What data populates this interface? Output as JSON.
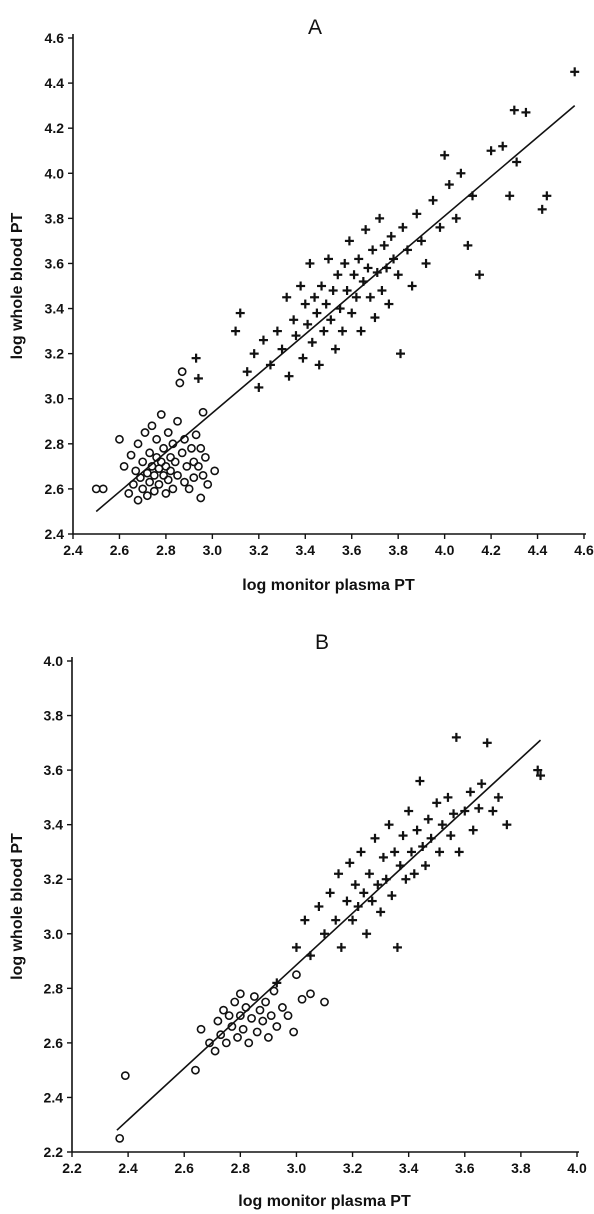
{
  "chart_data": [
    {
      "type": "scatter",
      "title": "A",
      "xlabel": "log monitor plasma PT",
      "ylabel": "log whole blood PT",
      "xlim": [
        2.4,
        4.6
      ],
      "ylim": [
        2.4,
        4.6
      ],
      "x_ticks": [
        "2.4",
        "2.6",
        "2.8",
        "3.0",
        "3.2",
        "3.4",
        "3.6",
        "3.8",
        "4.0",
        "4.2",
        "4.4",
        "4.6"
      ],
      "y_ticks": [
        "2.4",
        "2.6",
        "2.8",
        "3.0",
        "3.2",
        "3.4",
        "3.6",
        "3.8",
        "4.0",
        "4.2",
        "4.4",
        "4.6"
      ],
      "grid": false,
      "fit_line": {
        "x": [
          2.5,
          4.56
        ],
        "y": [
          2.5,
          4.3
        ]
      },
      "series": [
        {
          "marker": "circle",
          "points": [
            [
              2.5,
              2.6
            ],
            [
              2.53,
              2.6
            ],
            [
              2.6,
              2.82
            ],
            [
              2.62,
              2.7
            ],
            [
              2.64,
              2.58
            ],
            [
              2.65,
              2.75
            ],
            [
              2.66,
              2.62
            ],
            [
              2.67,
              2.68
            ],
            [
              2.68,
              2.55
            ],
            [
              2.68,
              2.8
            ],
            [
              2.69,
              2.65
            ],
            [
              2.7,
              2.72
            ],
            [
              2.7,
              2.6
            ],
            [
              2.71,
              2.85
            ],
            [
              2.72,
              2.67
            ],
            [
              2.72,
              2.57
            ],
            [
              2.73,
              2.76
            ],
            [
              2.73,
              2.63
            ],
            [
              2.74,
              2.7
            ],
            [
              2.74,
              2.88
            ],
            [
              2.75,
              2.66
            ],
            [
              2.75,
              2.59
            ],
            [
              2.76,
              2.74
            ],
            [
              2.76,
              2.82
            ],
            [
              2.77,
              2.69
            ],
            [
              2.77,
              2.62
            ],
            [
              2.78,
              2.93
            ],
            [
              2.78,
              2.72
            ],
            [
              2.79,
              2.66
            ],
            [
              2.79,
              2.78
            ],
            [
              2.8,
              2.58
            ],
            [
              2.8,
              2.7
            ],
            [
              2.81,
              2.85
            ],
            [
              2.81,
              2.64
            ],
            [
              2.82,
              2.74
            ],
            [
              2.82,
              2.68
            ],
            [
              2.83,
              2.8
            ],
            [
              2.83,
              2.6
            ],
            [
              2.84,
              2.72
            ],
            [
              2.85,
              2.66
            ],
            [
              2.85,
              2.9
            ],
            [
              2.86,
              3.07
            ],
            [
              2.87,
              3.12
            ],
            [
              2.87,
              2.76
            ],
            [
              2.88,
              2.63
            ],
            [
              2.88,
              2.82
            ],
            [
              2.89,
              2.7
            ],
            [
              2.9,
              2.6
            ],
            [
              2.91,
              2.78
            ],
            [
              2.92,
              2.72
            ],
            [
              2.92,
              2.65
            ],
            [
              2.93,
              2.84
            ],
            [
              2.94,
              2.7
            ],
            [
              2.95,
              2.56
            ],
            [
              2.95,
              2.78
            ],
            [
              2.96,
              2.94
            ],
            [
              2.96,
              2.66
            ],
            [
              2.97,
              2.74
            ],
            [
              2.98,
              2.62
            ],
            [
              3.01,
              2.68
            ]
          ]
        },
        {
          "marker": "plus",
          "points": [
            [
              2.93,
              3.18
            ],
            [
              2.94,
              3.09
            ],
            [
              3.1,
              3.3
            ],
            [
              3.12,
              3.38
            ],
            [
              3.15,
              3.12
            ],
            [
              3.18,
              3.2
            ],
            [
              3.2,
              3.05
            ],
            [
              3.22,
              3.26
            ],
            [
              3.25,
              3.15
            ],
            [
              3.28,
              3.3
            ],
            [
              3.3,
              3.22
            ],
            [
              3.32,
              3.45
            ],
            [
              3.33,
              3.1
            ],
            [
              3.35,
              3.35
            ],
            [
              3.36,
              3.28
            ],
            [
              3.38,
              3.5
            ],
            [
              3.39,
              3.18
            ],
            [
              3.4,
              3.42
            ],
            [
              3.41,
              3.33
            ],
            [
              3.42,
              3.6
            ],
            [
              3.43,
              3.25
            ],
            [
              3.44,
              3.45
            ],
            [
              3.45,
              3.38
            ],
            [
              3.46,
              3.15
            ],
            [
              3.47,
              3.5
            ],
            [
              3.48,
              3.3
            ],
            [
              3.49,
              3.42
            ],
            [
              3.5,
              3.62
            ],
            [
              3.51,
              3.35
            ],
            [
              3.52,
              3.48
            ],
            [
              3.53,
              3.22
            ],
            [
              3.54,
              3.55
            ],
            [
              3.55,
              3.4
            ],
            [
              3.56,
              3.3
            ],
            [
              3.57,
              3.6
            ],
            [
              3.58,
              3.48
            ],
            [
              3.59,
              3.7
            ],
            [
              3.6,
              3.38
            ],
            [
              3.61,
              3.55
            ],
            [
              3.62,
              3.45
            ],
            [
              3.63,
              3.62
            ],
            [
              3.64,
              3.3
            ],
            [
              3.65,
              3.52
            ],
            [
              3.66,
              3.75
            ],
            [
              3.67,
              3.58
            ],
            [
              3.68,
              3.45
            ],
            [
              3.69,
              3.66
            ],
            [
              3.7,
              3.36
            ],
            [
              3.71,
              3.56
            ],
            [
              3.72,
              3.8
            ],
            [
              3.73,
              3.48
            ],
            [
              3.74,
              3.68
            ],
            [
              3.75,
              3.58
            ],
            [
              3.76,
              3.42
            ],
            [
              3.77,
              3.72
            ],
            [
              3.78,
              3.62
            ],
            [
              3.8,
              3.55
            ],
            [
              3.81,
              3.2
            ],
            [
              3.82,
              3.76
            ],
            [
              3.84,
              3.66
            ],
            [
              3.86,
              3.5
            ],
            [
              3.88,
              3.82
            ],
            [
              3.9,
              3.7
            ],
            [
              3.92,
              3.6
            ],
            [
              3.95,
              3.88
            ],
            [
              3.98,
              3.76
            ],
            [
              4.0,
              4.08
            ],
            [
              4.02,
              3.95
            ],
            [
              4.05,
              3.8
            ],
            [
              4.07,
              4.0
            ],
            [
              4.1,
              3.68
            ],
            [
              4.12,
              3.9
            ],
            [
              4.15,
              3.55
            ],
            [
              4.2,
              4.1
            ],
            [
              4.25,
              4.12
            ],
            [
              4.28,
              3.9
            ],
            [
              4.3,
              4.28
            ],
            [
              4.31,
              4.05
            ],
            [
              4.35,
              4.27
            ],
            [
              4.42,
              3.84
            ],
            [
              4.44,
              3.9
            ],
            [
              4.56,
              4.45
            ]
          ]
        }
      ]
    },
    {
      "type": "scatter",
      "title": "B",
      "xlabel": "log monitor plasma PT",
      "ylabel": "log whole blood PT",
      "xlim": [
        2.2,
        4.0
      ],
      "ylim": [
        2.2,
        4.0
      ],
      "x_ticks": [
        "2.2",
        "2.4",
        "2.6",
        "2.8",
        "3.0",
        "3.2",
        "3.4",
        "3.6",
        "3.8",
        "4.0"
      ],
      "y_ticks": [
        "2.2",
        "2.4",
        "2.6",
        "2.8",
        "3.0",
        "3.2",
        "3.4",
        "3.6",
        "3.8",
        "4.0"
      ],
      "grid": false,
      "fit_line": {
        "x": [
          2.36,
          3.87
        ],
        "y": [
          2.28,
          3.71
        ]
      },
      "series": [
        {
          "marker": "circle",
          "points": [
            [
              2.37,
              2.25
            ],
            [
              2.39,
              2.48
            ],
            [
              2.64,
              2.5
            ],
            [
              2.66,
              2.65
            ],
            [
              2.69,
              2.6
            ],
            [
              2.71,
              2.57
            ],
            [
              2.72,
              2.68
            ],
            [
              2.73,
              2.63
            ],
            [
              2.74,
              2.72
            ],
            [
              2.75,
              2.6
            ],
            [
              2.76,
              2.7
            ],
            [
              2.77,
              2.66
            ],
            [
              2.78,
              2.75
            ],
            [
              2.79,
              2.62
            ],
            [
              2.8,
              2.7
            ],
            [
              2.8,
              2.78
            ],
            [
              2.81,
              2.65
            ],
            [
              2.82,
              2.73
            ],
            [
              2.83,
              2.6
            ],
            [
              2.84,
              2.69
            ],
            [
              2.85,
              2.77
            ],
            [
              2.86,
              2.64
            ],
            [
              2.87,
              2.72
            ],
            [
              2.88,
              2.68
            ],
            [
              2.89,
              2.75
            ],
            [
              2.9,
              2.62
            ],
            [
              2.91,
              2.7
            ],
            [
              2.92,
              2.79
            ],
            [
              2.93,
              2.66
            ],
            [
              2.95,
              2.73
            ],
            [
              2.97,
              2.7
            ],
            [
              2.99,
              2.64
            ],
            [
              3.0,
              2.85
            ],
            [
              3.02,
              2.76
            ],
            [
              3.05,
              2.78
            ],
            [
              3.1,
              2.75
            ]
          ]
        },
        {
          "marker": "plus",
          "points": [
            [
              2.93,
              2.82
            ],
            [
              3.0,
              2.95
            ],
            [
              3.03,
              3.05
            ],
            [
              3.05,
              2.92
            ],
            [
              3.08,
              3.1
            ],
            [
              3.1,
              3.0
            ],
            [
              3.12,
              3.15
            ],
            [
              3.14,
              3.05
            ],
            [
              3.15,
              3.22
            ],
            [
              3.16,
              2.95
            ],
            [
              3.18,
              3.12
            ],
            [
              3.19,
              3.26
            ],
            [
              3.2,
              3.05
            ],
            [
              3.21,
              3.18
            ],
            [
              3.22,
              3.1
            ],
            [
              3.23,
              3.3
            ],
            [
              3.24,
              3.15
            ],
            [
              3.25,
              3.0
            ],
            [
              3.26,
              3.22
            ],
            [
              3.27,
              3.12
            ],
            [
              3.28,
              3.35
            ],
            [
              3.29,
              3.18
            ],
            [
              3.3,
              3.08
            ],
            [
              3.31,
              3.28
            ],
            [
              3.32,
              3.2
            ],
            [
              3.33,
              3.4
            ],
            [
              3.34,
              3.14
            ],
            [
              3.35,
              3.3
            ],
            [
              3.36,
              2.95
            ],
            [
              3.37,
              3.25
            ],
            [
              3.38,
              3.36
            ],
            [
              3.39,
              3.2
            ],
            [
              3.4,
              3.45
            ],
            [
              3.41,
              3.3
            ],
            [
              3.42,
              3.22
            ],
            [
              3.43,
              3.38
            ],
            [
              3.44,
              3.56
            ],
            [
              3.45,
              3.32
            ],
            [
              3.46,
              3.25
            ],
            [
              3.47,
              3.42
            ],
            [
              3.48,
              3.35
            ],
            [
              3.5,
              3.48
            ],
            [
              3.51,
              3.3
            ],
            [
              3.52,
              3.4
            ],
            [
              3.54,
              3.5
            ],
            [
              3.55,
              3.36
            ],
            [
              3.56,
              3.44
            ],
            [
              3.57,
              3.72
            ],
            [
              3.58,
              3.3
            ],
            [
              3.6,
              3.45
            ],
            [
              3.62,
              3.52
            ],
            [
              3.63,
              3.38
            ],
            [
              3.65,
              3.46
            ],
            [
              3.66,
              3.55
            ],
            [
              3.68,
              3.7
            ],
            [
              3.7,
              3.45
            ],
            [
              3.72,
              3.5
            ],
            [
              3.75,
              3.4
            ],
            [
              3.86,
              3.6
            ],
            [
              3.87,
              3.58
            ]
          ]
        }
      ]
    }
  ]
}
